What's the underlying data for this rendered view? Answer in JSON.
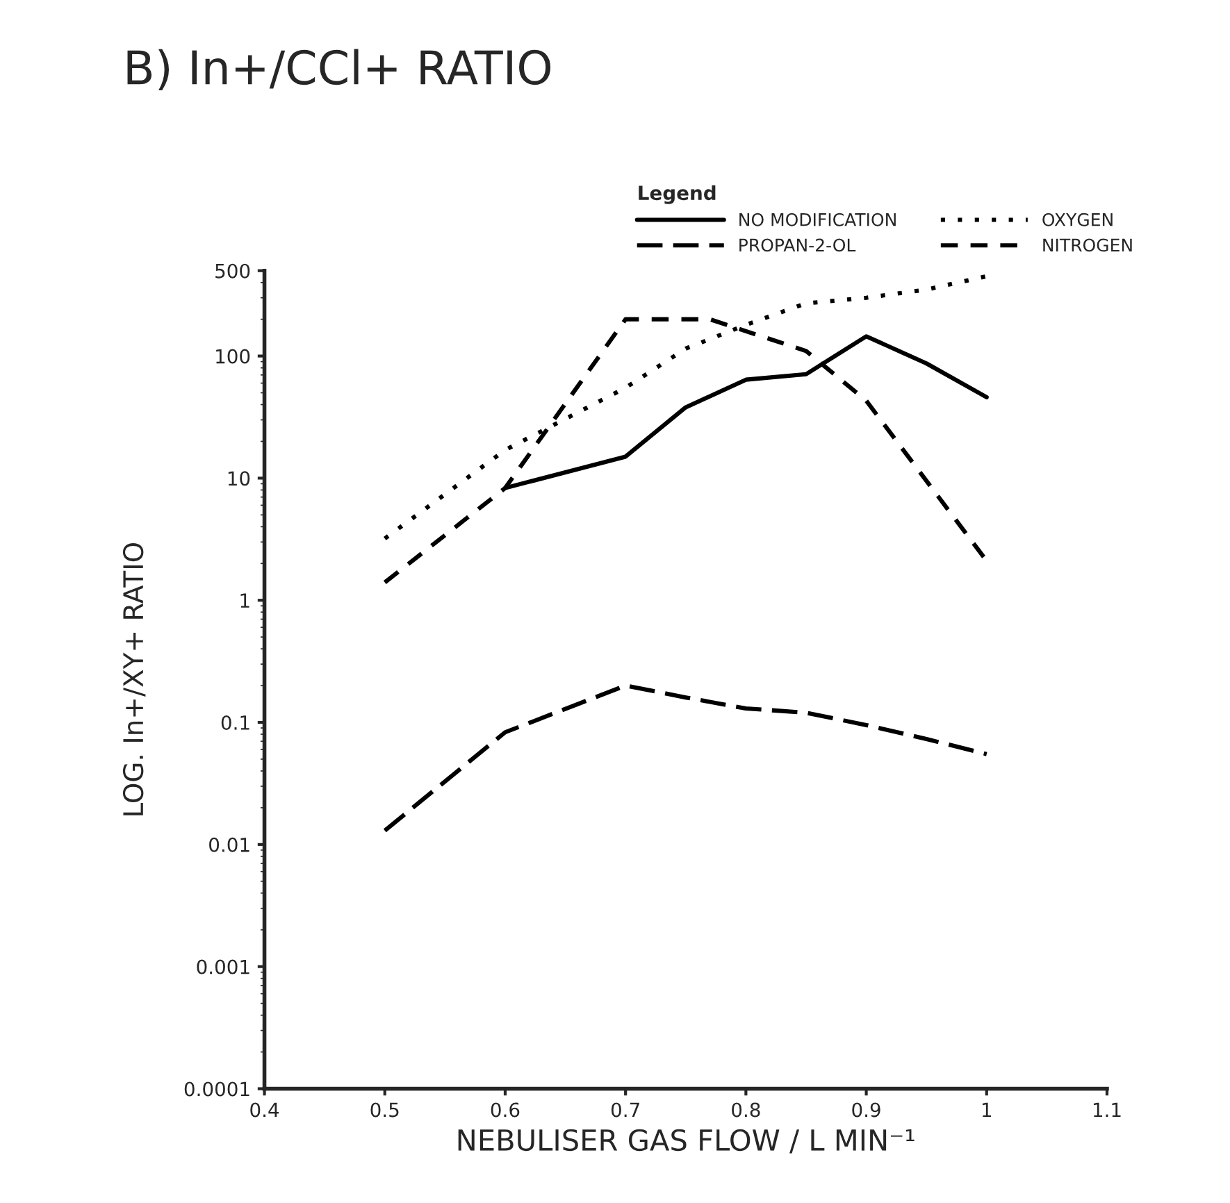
{
  "chart_data": {
    "type": "line",
    "title": "B) In+/CCl+ RATIO",
    "xlabel": "NEBULISER GAS FLOW / L MIN⁻¹",
    "ylabel": "LOG. In+/XY+ RATIO",
    "legend_title": "Legend",
    "legend": "top right",
    "log": "y",
    "grid": false,
    "marker": "none",
    "xlim": [
      0.4,
      1.1
    ],
    "xticks": [
      0.4,
      0.5,
      0.6,
      0.7,
      0.8,
      0.9,
      1,
      1.1
    ],
    "ylim": [
      0.0001,
      500
    ],
    "yticks": [
      0.0001,
      0.001,
      0.01,
      0.1,
      1,
      10,
      100,
      500
    ],
    "series": [
      {
        "name": "NO MODIFICATION",
        "color": "#000000",
        "line_style": "solid",
        "x": [
          0.6,
          0.7,
          0.75,
          0.8,
          0.85,
          0.9,
          0.95,
          1.0
        ],
        "values": [
          8.3,
          15,
          38,
          64,
          71,
          145,
          87,
          46
        ]
      },
      {
        "name": "PROPAN-2-OL",
        "color": "#000000",
        "line_style": "long dashed",
        "x": [
          0.5,
          0.6,
          0.7,
          0.75,
          0.8,
          0.85,
          0.9,
          0.95,
          1.0
        ],
        "values": [
          0.013,
          0.083,
          0.2,
          0.16,
          0.13,
          0.12,
          0.095,
          0.073,
          0.055
        ]
      },
      {
        "name": "OXYGEN",
        "color": "#000000",
        "line_style": "dotted",
        "x": [
          0.5,
          0.6,
          0.7,
          0.75,
          0.8,
          0.85,
          0.9,
          0.95,
          1.0
        ],
        "values": [
          3.2,
          17,
          55,
          115,
          180,
          270,
          300,
          350,
          450
        ]
      },
      {
        "name": "NITROGEN",
        "color": "#000000",
        "line_style": "dashed",
        "x": [
          0.5,
          0.6,
          0.7,
          0.77,
          0.85,
          0.9,
          1.0
        ],
        "values": [
          1.4,
          8.3,
          200,
          200,
          110,
          43,
          2.1
        ]
      }
    ]
  }
}
